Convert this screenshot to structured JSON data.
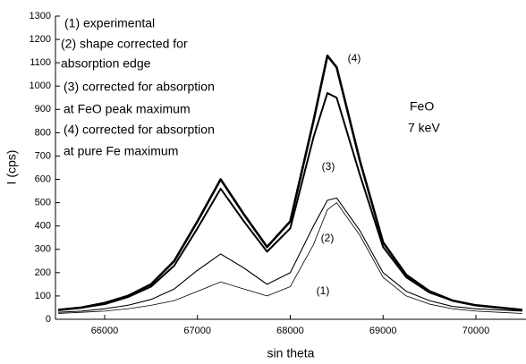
{
  "chart_data": {
    "type": "line",
    "xlabel": "sin theta",
    "ylabel": "I (cps)",
    "x": [
      65500,
      65750,
      66000,
      66250,
      66500,
      66750,
      67000,
      67250,
      67500,
      67750,
      68000,
      68250,
      68400,
      68500,
      68750,
      69000,
      69250,
      69500,
      69750,
      70000,
      70250,
      70500
    ],
    "series": [
      {
        "name": "(1)",
        "color": "#000000",
        "line_width": 0.8,
        "values": [
          25,
          30,
          35,
          45,
          60,
          80,
          120,
          160,
          130,
          100,
          140,
          320,
          470,
          500,
          360,
          180,
          100,
          65,
          45,
          35,
          30,
          25
        ]
      },
      {
        "name": "(2)",
        "color": "#000000",
        "line_width": 1.1,
        "values": [
          30,
          35,
          45,
          60,
          85,
          130,
          210,
          280,
          220,
          150,
          200,
          400,
          510,
          520,
          380,
          200,
          120,
          80,
          55,
          45,
          40,
          35
        ]
      },
      {
        "name": "(3)",
        "color": "#000000",
        "line_width": 2,
        "values": [
          40,
          50,
          65,
          95,
          140,
          230,
          390,
          560,
          420,
          290,
          390,
          780,
          970,
          950,
          620,
          310,
          180,
          115,
          80,
          60,
          50,
          40
        ]
      },
      {
        "name": "(4)",
        "color": "#000000",
        "line_width": 2.6,
        "values": [
          40,
          50,
          70,
          100,
          150,
          250,
          420,
          600,
          450,
          310,
          420,
          850,
          1130,
          1080,
          680,
          330,
          190,
          120,
          80,
          60,
          50,
          40
        ]
      }
    ],
    "annotations": [
      "(1) experimental",
      "(2) shape corrected for",
      "absorption edge",
      "(3) corrected for absorption",
      "at FeO  peak maximum",
      "(4) corrected for absorption",
      "at pure Fe maximum",
      "FeO",
      "7 keV"
    ],
    "xlim": [
      65470,
      70540
    ],
    "ylim": [
      0,
      1300
    ],
    "xticks": [
      66000,
      67000,
      68000,
      69000,
      70000
    ],
    "yticks": [
      0,
      100,
      200,
      300,
      400,
      500,
      600,
      700,
      800,
      900,
      1000,
      1100,
      1200,
      1300
    ],
    "grid": false
  }
}
